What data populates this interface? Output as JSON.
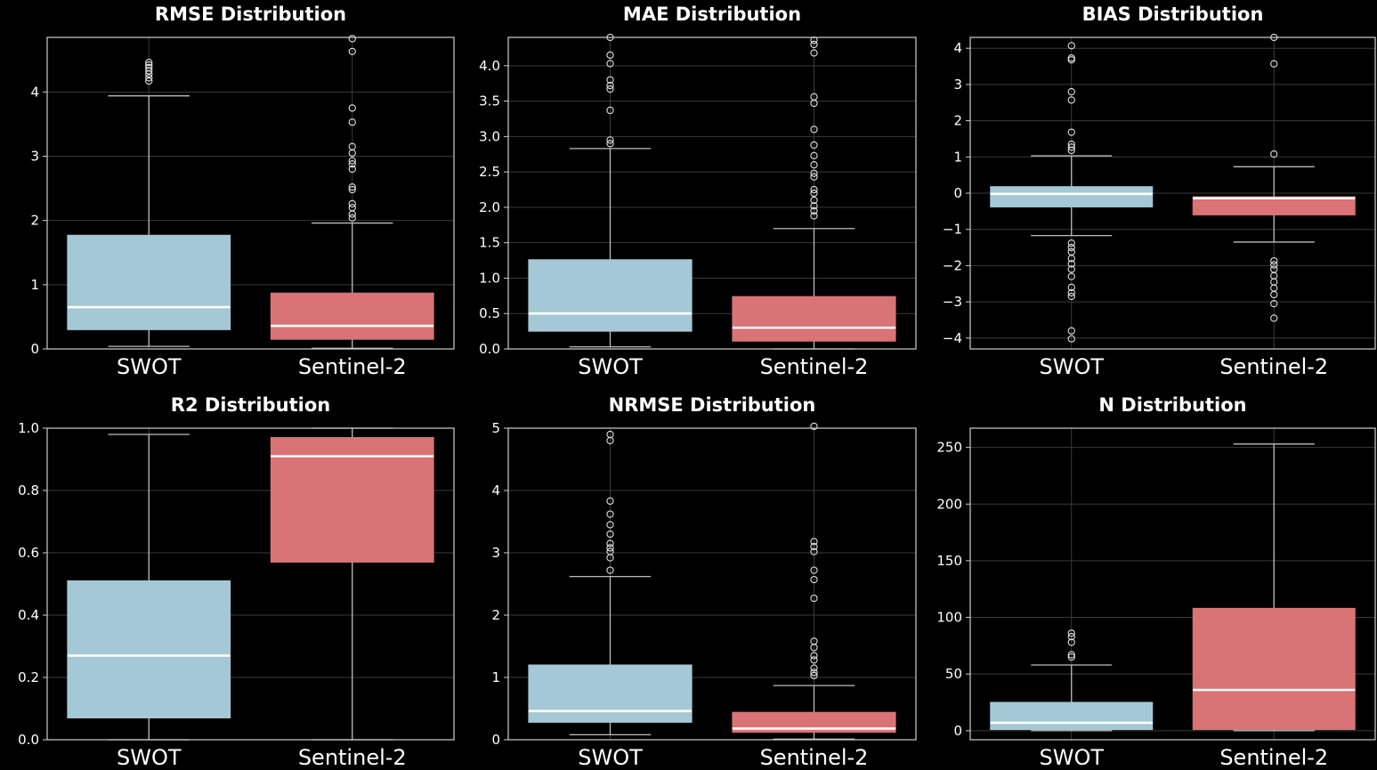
{
  "colors": {
    "background": "#000000",
    "swot": "#a4c8d5",
    "sentinel2": "#d97375",
    "median": "#ffffff",
    "grid": "#3a3a3a",
    "frame": "#cfcfcf",
    "whisker": "#bdbdbd"
  },
  "chart_data": [
    {
      "type": "box",
      "title": "RMSE Distribution",
      "ylim": [
        0,
        4.85
      ],
      "yticks": [
        0,
        1,
        2,
        3,
        4
      ],
      "categories": [
        "SWOT",
        "Sentinel-2"
      ],
      "boxes": [
        {
          "q1": 0.3,
          "median": 0.65,
          "q3": 1.77,
          "whislo": 0.04,
          "whishi": 3.94,
          "fliers": [
            4.17,
            4.22,
            4.28,
            4.33,
            4.38,
            4.42,
            4.46
          ]
        },
        {
          "q1": 0.15,
          "median": 0.36,
          "q3": 0.87,
          "whislo": 0.01,
          "whishi": 1.96,
          "fliers": [
            2.04,
            2.1,
            2.2,
            2.26,
            2.48,
            2.52,
            2.8,
            2.88,
            2.93,
            3.05,
            3.15,
            3.53,
            3.75,
            4.63,
            4.83
          ]
        }
      ]
    },
    {
      "type": "box",
      "title": "MAE Distribution",
      "ylim": [
        0,
        4.4
      ],
      "yticks": [
        0.0,
        0.5,
        1.0,
        1.5,
        2.0,
        2.5,
        3.0,
        3.5,
        4.0
      ],
      "categories": [
        "SWOT",
        "Sentinel-2"
      ],
      "boxes": [
        {
          "q1": 0.25,
          "median": 0.5,
          "q3": 1.26,
          "whislo": 0.03,
          "whishi": 2.83,
          "fliers": [
            2.9,
            2.95,
            3.37,
            3.67,
            3.72,
            3.8,
            4.03,
            4.15,
            4.4
          ]
        },
        {
          "q1": 0.11,
          "median": 0.3,
          "q3": 0.74,
          "whislo": 0.0,
          "whishi": 1.7,
          "fliers": [
            1.88,
            1.95,
            2.02,
            2.1,
            2.2,
            2.25,
            2.43,
            2.48,
            2.6,
            2.73,
            2.88,
            3.1,
            3.47,
            3.56,
            4.18,
            4.3,
            4.36
          ]
        }
      ]
    },
    {
      "type": "box",
      "title": "BIAS Distribution",
      "ylim": [
        -4.3,
        4.3
      ],
      "yticks": [
        -4,
        -3,
        -2,
        -1,
        0,
        1,
        2,
        3,
        4
      ],
      "categories": [
        "SWOT",
        "Sentinel-2"
      ],
      "boxes": [
        {
          "q1": -0.38,
          "median": -0.02,
          "q3": 0.18,
          "whislo": -1.17,
          "whishi": 1.03,
          "fliers": [
            1.18,
            1.27,
            1.35,
            1.68,
            2.57,
            2.8,
            3.68,
            3.73,
            4.07,
            -1.38,
            -1.5,
            -1.62,
            -1.8,
            -1.95,
            -2.1,
            -2.3,
            -2.6,
            -2.75,
            -2.85,
            -3.8,
            -4.02
          ]
        },
        {
          "q1": -0.6,
          "median": -0.14,
          "q3": -0.1,
          "whislo": -1.35,
          "whishi": 0.73,
          "fliers": [
            1.08,
            3.57,
            4.3,
            -1.87,
            -1.98,
            -2.1,
            -2.28,
            -2.45,
            -2.62,
            -2.8,
            -3.05,
            -3.45
          ]
        }
      ]
    },
    {
      "type": "box",
      "title": "R2 Distribution",
      "ylim": [
        0,
        1.0
      ],
      "yticks": [
        0.0,
        0.2,
        0.4,
        0.6,
        0.8,
        1.0
      ],
      "categories": [
        "SWOT",
        "Sentinel-2"
      ],
      "boxes": [
        {
          "q1": 0.07,
          "median": 0.27,
          "q3": 0.51,
          "whislo": 0.0,
          "whishi": 0.98,
          "fliers": []
        },
        {
          "q1": 0.57,
          "median": 0.91,
          "q3": 0.97,
          "whislo": 0.0,
          "whishi": 1.0,
          "fliers": []
        }
      ]
    },
    {
      "type": "box",
      "title": "NRMSE Distribution",
      "ylim": [
        0,
        5.0
      ],
      "yticks": [
        0,
        1,
        2,
        3,
        4,
        5
      ],
      "categories": [
        "SWOT",
        "Sentinel-2"
      ],
      "boxes": [
        {
          "q1": 0.28,
          "median": 0.46,
          "q3": 1.2,
          "whislo": 0.08,
          "whishi": 2.62,
          "fliers": [
            2.72,
            2.92,
            3.02,
            3.08,
            3.15,
            3.3,
            3.45,
            3.62,
            3.83,
            4.8,
            4.9
          ]
        },
        {
          "q1": 0.12,
          "median": 0.18,
          "q3": 0.44,
          "whislo": 0.01,
          "whishi": 0.87,
          "fliers": [
            1.03,
            1.08,
            1.15,
            1.28,
            1.35,
            1.48,
            1.58,
            2.27,
            2.57,
            2.72,
            3.02,
            3.1,
            3.18,
            5.03
          ]
        }
      ]
    },
    {
      "type": "box",
      "title": "N Distribution",
      "ylim": [
        -8,
        267
      ],
      "yticks": [
        0,
        50,
        100,
        150,
        200,
        250
      ],
      "categories": [
        "SWOT",
        "Sentinel-2"
      ],
      "boxes": [
        {
          "q1": 1,
          "median": 7,
          "q3": 25,
          "whislo": 0,
          "whishi": 58,
          "fliers": [
            65,
            67,
            78,
            83,
            86
          ]
        },
        {
          "q1": 1,
          "median": 36,
          "q3": 108,
          "whislo": 0,
          "whishi": 253,
          "fliers": []
        }
      ]
    }
  ]
}
